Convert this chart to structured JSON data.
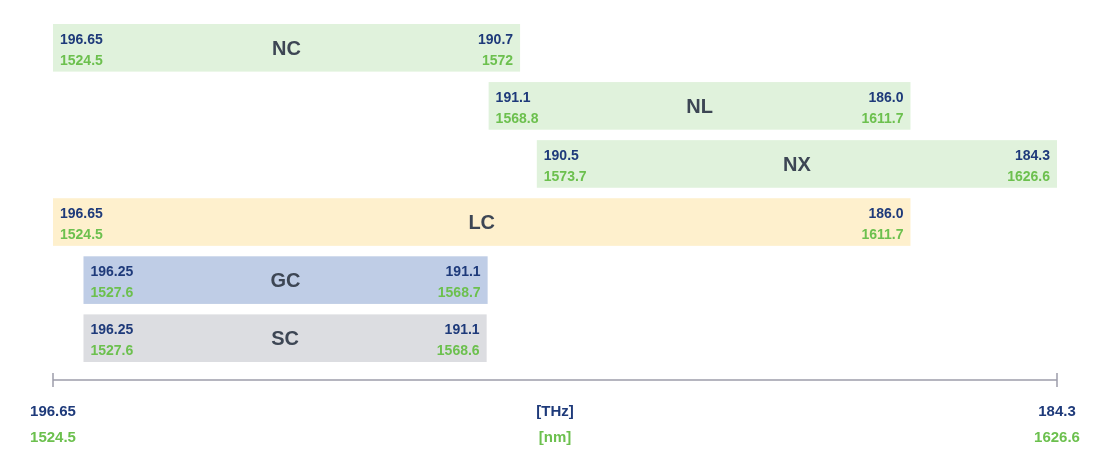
{
  "chart_data": {
    "type": "bar",
    "orientation": "horizontal",
    "categories": [
      "NC",
      "NL",
      "NX",
      "LC",
      "GC",
      "SC"
    ],
    "base": [
      1524.5,
      1568.8,
      1573.7,
      1524.5,
      1527.6,
      1527.6
    ],
    "values": [
      47.5,
      42.9,
      52.9,
      87.2,
      41.1,
      41.0
    ],
    "colors": [
      "#e0f2dc",
      "#e0f2dc",
      "#e0f2dc",
      "#fef0cd",
      "#bfcde6",
      "#dcdde1"
    ],
    "xlim": [
      1524.5,
      1626.6
    ],
    "xticks": [
      1524.5,
      1626.6
    ],
    "xlabel": "[nm]",
    "x2lim": [
      196.65,
      184.3
    ],
    "x2ticks": [
      196.65,
      184.3
    ],
    "x2label": "[THz]",
    "annotations": [
      {
        "text": "196.65",
        "x": 1524.5,
        "y": "NC"
      },
      {
        "text": "1524.5",
        "x": 1524.5,
        "y": "NC"
      },
      {
        "text": "190.7",
        "x": 1572,
        "y": "NC"
      },
      {
        "text": "1572",
        "x": 1572,
        "y": "NC"
      },
      {
        "text": "191.1",
        "x": 1568.8,
        "y": "NL"
      },
      {
        "text": "1568.8",
        "x": 1568.8,
        "y": "NL"
      },
      {
        "text": "186.0",
        "x": 1611.7,
        "y": "NL"
      },
      {
        "text": "1611.7",
        "x": 1611.7,
        "y": "NL"
      },
      {
        "text": "190.5",
        "x": 1573.7,
        "y": "NX"
      },
      {
        "text": "1573.7",
        "x": 1573.7,
        "y": "NX"
      },
      {
        "text": "184.3",
        "x": 1626.6,
        "y": "NX"
      },
      {
        "text": "1626.6",
        "x": 1626.6,
        "y": "NX"
      },
      {
        "text": "196.65",
        "x": 1524.5,
        "y": "LC"
      },
      {
        "text": "1524.5",
        "x": 1524.5,
        "y": "LC"
      },
      {
        "text": "186.0",
        "x": 1611.7,
        "y": "LC"
      },
      {
        "text": "1611.7",
        "x": 1611.7,
        "y": "LC"
      },
      {
        "text": "196.25",
        "x": 1527.6,
        "y": "GC"
      },
      {
        "text": "1527.6",
        "x": 1527.6,
        "y": "GC"
      },
      {
        "text": "191.1",
        "x": 1568.7,
        "y": "GC"
      },
      {
        "text": "1568.7",
        "x": 1568.7,
        "y": "GC"
      },
      {
        "text": "196.25",
        "x": 1527.6,
        "y": "SC"
      },
      {
        "text": "1527.6",
        "x": 1527.6,
        "y": "SC"
      },
      {
        "text": "191.1",
        "x": 1568.6,
        "y": "SC"
      },
      {
        "text": "1568.6",
        "x": 1568.6,
        "y": "SC"
      }
    ]
  }
}
